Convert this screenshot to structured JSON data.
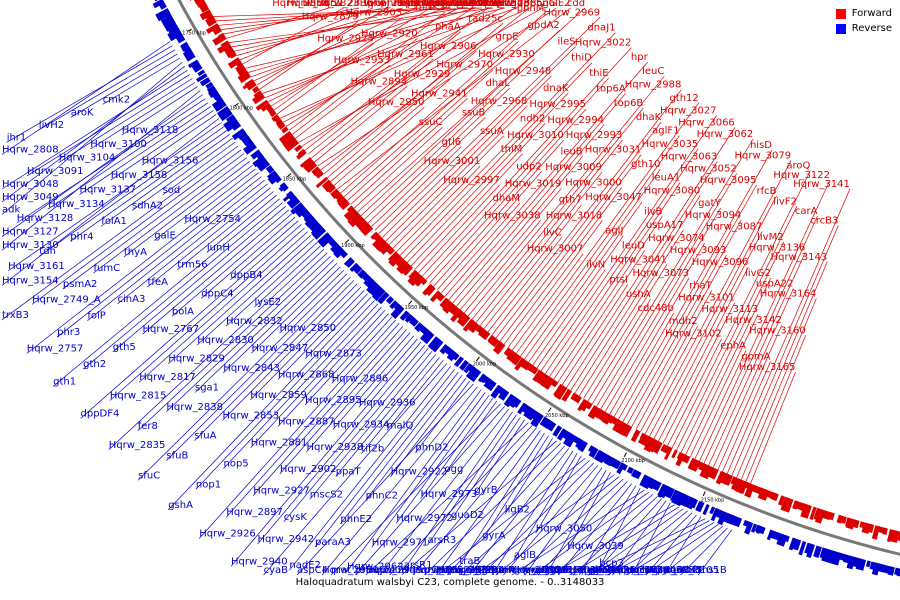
{
  "caption": "Haloquadratum walsbyi C23, complete genome. - 0..3148033",
  "legend": [
    {
      "label": "Forward",
      "color": "#ff0000"
    },
    {
      "label": "Reverse",
      "color": "#0000ff"
    }
  ],
  "colors": {
    "forward": "#dd0000",
    "reverse": "#0000cc",
    "backbone": "#777777"
  },
  "ruler": [
    "2150 kbp",
    "2100 kbp",
    "2050 kbp",
    "2000 kbp",
    "1950 kbp",
    "1900 kbp",
    "1850 kbp",
    "1800 kbp",
    "1750 kbp"
  ],
  "labels_reverse": [
    "ths1B",
    "cbf5",
    "Hqrw_3105",
    "Hqrw_3086",
    "Hqrw_3046",
    "Hqrw_3114",
    "phoU3",
    "ctaA",
    "Hqrw_3042",
    "cdc48c",
    "cmk1",
    "glnH",
    "Hqrw_3040",
    "glnP",
    "rnhA1",
    "Hqrw_3034",
    "glnQ",
    "Hqrw_3033",
    "mscS3",
    "ginS",
    "Hqrw_3028",
    "bcp3",
    "Hqrw_3026",
    "Hqrw_3065",
    "aglG",
    "Hqrw_3021",
    "priA",
    "tif2Ba",
    "Hqrw_3039",
    "Hqrw_3011",
    "orc10",
    "Hqrw_3008",
    "gth4",
    "galE3",
    "Hqrw_2998",
    "Hqrw_3050",
    "aglB",
    "purM",
    "aglM",
    "Hqrw_2991",
    "psmB",
    "Hqrw_2986",
    "ligB2",
    "gyrA",
    "traB",
    "Hqrw_2977",
    "Hqrw_2952",
    "sun",
    "Hqrw_2949",
    "gyrB",
    "guaD2",
    "arsR3",
    "arsR1",
    "pat",
    "phoU2",
    "mat",
    "ogg",
    "Hqrw_2973",
    "Hqrw_2972",
    "Hqrw_2971",
    "Hqrw_2962",
    "Hqrw_2959",
    "aspC4",
    "phnD2",
    "Hqrw_2922",
    "phnC2",
    "phnE2",
    "paraA3",
    "nadE2",
    "cyaB",
    "malQ",
    "tif2b",
    "ppaT",
    "mscS2",
    "cysK",
    "Hqrw_2942",
    "Hqrw_2940",
    "Hqrw_2936",
    "Hqrw_2934",
    "Hqrw_2938",
    "Hqrw_2902",
    "Hqrw_2927",
    "Hqrw_2897",
    "Hqrw_2926",
    "Hqrw_2896",
    "Hqrw_2895",
    "Hqrw_2887",
    "Hqrw_2881",
    "nop5",
    "nop1",
    "gshA",
    "Hqrw_2873",
    "Hqrw_2868",
    "Hqrw_2859",
    "Hqrw_2853",
    "sfuA",
    "sfuB",
    "sfuC",
    "Hqrw_2850",
    "Hqrw_2847",
    "Hqrw_2843",
    "sga1",
    "Hqrw_2838",
    "fer8",
    "Hqrw_2835",
    "lysE2",
    "Hqrw_2832",
    "Hqrw_2830",
    "Hqrw_2829",
    "Hqrw_2817",
    "Hqrw_2815",
    "dppDF4",
    "dppB4",
    "dppC4",
    "bolA",
    "Hqrw_2767",
    "gth5",
    "gth2",
    "gth1",
    "iunH",
    "trm56",
    "tfeA",
    "cinA3",
    "folP",
    "phr3",
    "Hqrw_2757",
    "Hqrw_2754",
    "galE",
    "thyA",
    "fumC",
    "psmA2",
    "Hqrw_2749_A",
    "trxB3",
    "sod",
    "sdhA2",
    "folA1",
    "phr4",
    "tdh",
    "Hqrw_3161",
    "Hqrw_3154",
    "Hqrw_3156",
    "Hqrw_3158",
    "Hqrw_3137",
    "Hqrw_3134",
    "Hqrw_3128",
    "Hqrw_3127",
    "Hqrw_3130",
    "Hqrw_3118",
    "Hqrw_3100",
    "Hqrw_3104",
    "Hqrw_3091",
    "Hqrw_3048",
    "Hqrw_3049",
    "adk",
    "cmk2",
    "aroK",
    "livH2",
    "ihr1",
    "Hqrw_2808"
  ],
  "labels_forward": [
    "Hqrw_3165",
    "Hqrw_3160",
    "Hqrw_3164",
    "Hqrw_3143",
    "crcB3",
    "Hqrw_3141",
    "gpmA",
    "Hqrw_3142",
    "uspA22",
    "Hqrw_3136",
    "carA",
    "Hqrw_3122",
    "ephA",
    "Hqrw_3113",
    "livG2",
    "livM2",
    "livF2",
    "aroQ",
    "Hqrw_3102",
    "Hqrw_3101",
    "Hqrw_3096",
    "Hqrw_3087",
    "rfcB",
    "Hqrw_3079",
    "mdh2",
    "rhaT",
    "Hqrw_3093",
    "Hqrw_3094",
    "Hqrw_3095",
    "hisD",
    "cdc48b",
    "Hqrw_3073",
    "Hqrw_3074",
    "gatY",
    "Hqrw_3052",
    "Hqrw_3062",
    "ushA",
    "Hqrw_3041",
    "uspA17",
    "Hqrw_3080",
    "Hqrw_3063",
    "Hqrw_3066",
    "ptsI",
    "leuD",
    "ilvB",
    "leuA1",
    "Hqrw_3035",
    "Hqrw_3027",
    "ilvN",
    "aglJ",
    "Hqrw_3047",
    "gth10",
    "aglF1",
    "gth12",
    "Hqrw_3007",
    "Hqrw_3018",
    "Hqrw_3000",
    "Hqrw_3031",
    "dhaK",
    "Hqrw_2988",
    "ilvC",
    "gth7",
    "Hqrw_3009",
    "Hqrw_2993",
    "top6B",
    "leuC",
    "Hqrw_3038",
    "Hqrw_3019",
    "leuB",
    "Hqrw_2994",
    "top6A",
    "hpr",
    "dhaM",
    "udp2",
    "Hqrw_3010",
    "Hqrw_2995",
    "thiE",
    "Hqrw_3022",
    "Hqrw_2997",
    "thiM",
    "ndh2",
    "dnaK",
    "thiD",
    "dnaJ1",
    "Hqrw_3001",
    "ssuA",
    "Hqrw_2968",
    "Hqrw_2948",
    "ileS",
    "Hqrw_2969",
    "gtl6",
    "ssuB",
    "dhaL",
    "Hqrw_2930",
    "gpdA2",
    "cdd",
    "ssuC",
    "Hqrw_2941",
    "Hqrw_2970",
    "grpE",
    "phnM",
    "galE2",
    "Hqrw_2950",
    "Hqrw_2929",
    "Hqrw_2906",
    "rad25c",
    "Hqrw_2943",
    "phnG",
    "Hqrw_2894",
    "Hqrw_2961",
    "phaA",
    "phnH",
    "dph2",
    "Hqrw_2885",
    "Hqrw_2953",
    "Hqrw_2920",
    "mtfK2",
    "Hqrw_2874",
    "Hqrw_2964",
    "gbp",
    "Hqrw_2925",
    "Hqrw_2903",
    "thiS",
    "Hqrw_2863",
    "Hqrw_2944",
    "Hqrw_2905",
    "Hqrw_2879",
    "vvoF",
    "Hqrw_2849",
    "lrp3",
    "Hqrw_2908",
    "tfbA6",
    "Hqrw_2852",
    "Hqrw_2836",
    "phnI",
    "ictP",
    "amyA2",
    "Hqrw_2892",
    "Hqrw_2858",
    "Hqrw_2823",
    "phnJ",
    "tbpA",
    "Hqrw_2805",
    "dadA"
  ]
}
